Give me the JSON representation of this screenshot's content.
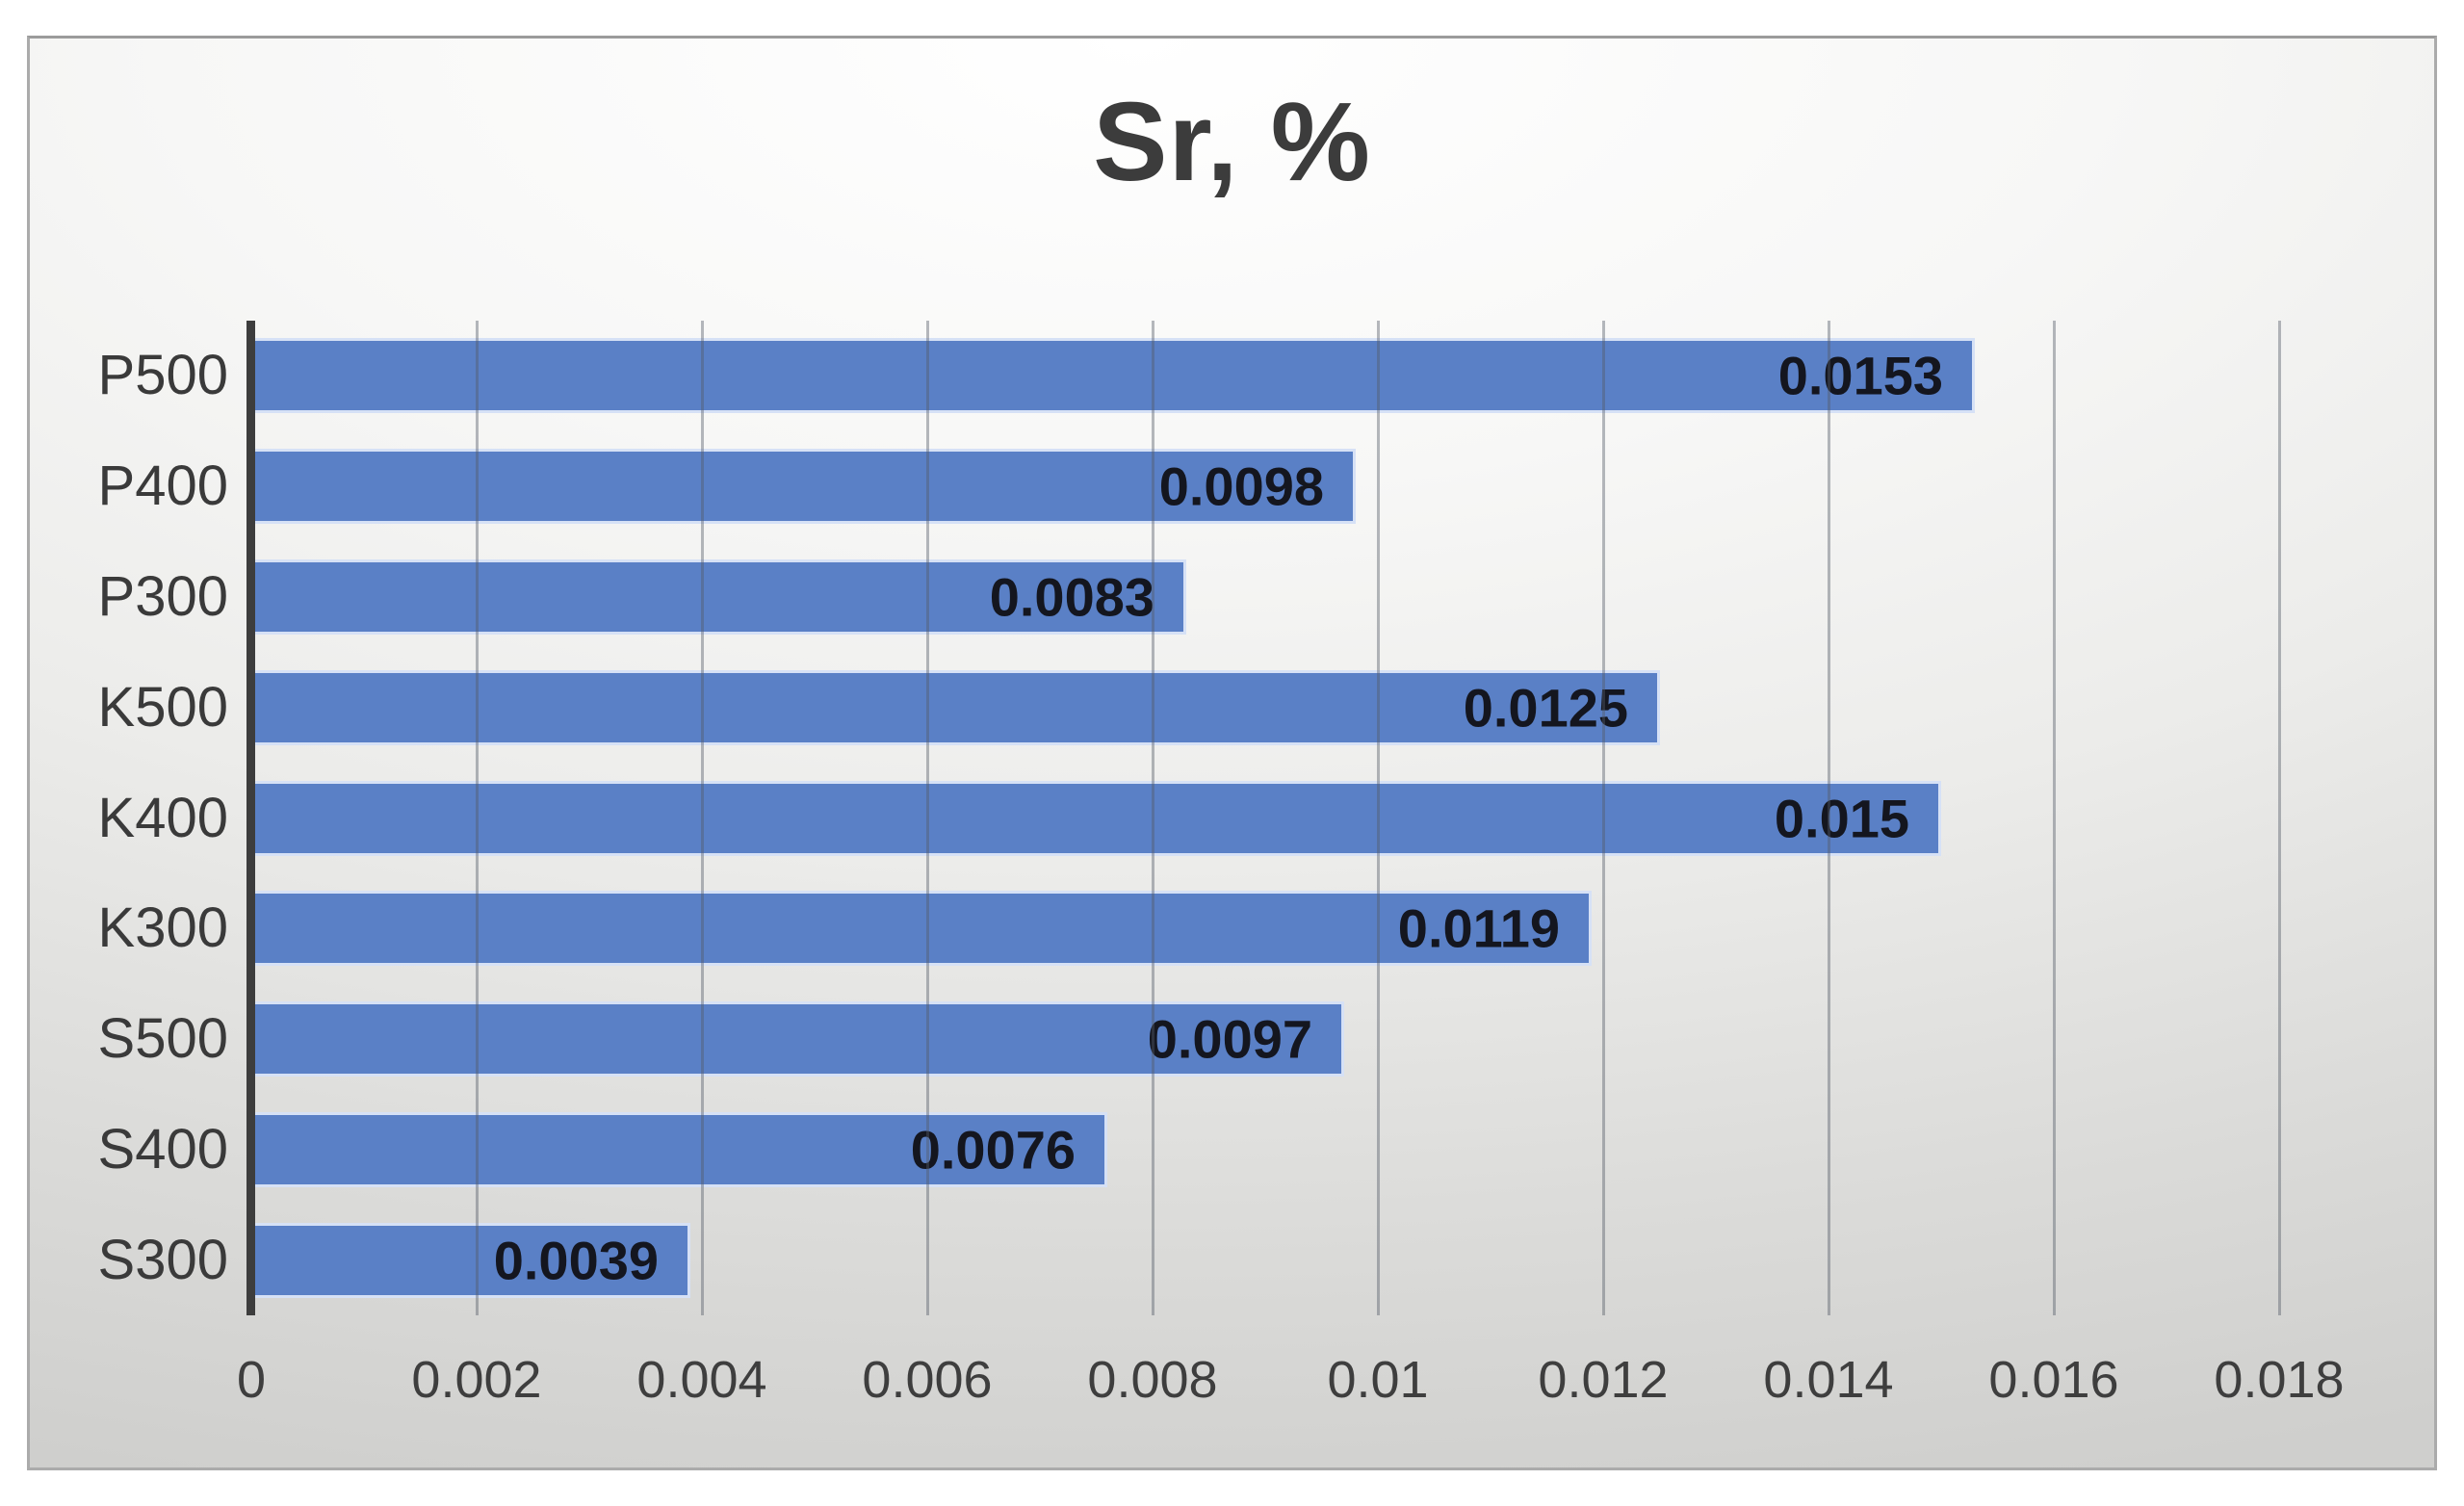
{
  "chart_data": {
    "type": "bar",
    "orientation": "horizontal",
    "title": "Sr, %",
    "categories": [
      "P500",
      "P400",
      "P300",
      "K500",
      "K400",
      "K300",
      "S500",
      "S400",
      "S300"
    ],
    "values": [
      0.0153,
      0.0098,
      0.0083,
      0.0125,
      0.015,
      0.0119,
      0.0097,
      0.0076,
      0.0039
    ],
    "value_labels": [
      "0.0153",
      "0.0098",
      "0.0083",
      "0.0125",
      "0.015",
      "0.0119",
      "0.0097",
      "0.0076",
      "0.0039"
    ],
    "xlim": [
      0,
      0.018
    ],
    "xticks": {
      "values": [
        0,
        0.002,
        0.004,
        0.006,
        0.008,
        0.01,
        0.012,
        0.014,
        0.016,
        0.018
      ],
      "labels": [
        "0",
        "0.002",
        "0.004",
        "0.006",
        "0.008",
        "0.01",
        "0.012",
        "0.014",
        "0.016",
        "0.018"
      ]
    },
    "grid": true,
    "legend": false,
    "data_labels_position": "inside-end",
    "colors": {
      "bar_fill": "#5a80c6",
      "bar_border": "#d6e1f6",
      "axis_line": "#3d3d3d",
      "gridline": "rgba(84,90,102,0.42)",
      "title_text": "#3c3c3c",
      "tick_text": "#3e3e3e",
      "category_text": "#3a3a3a",
      "data_label_text": "#14161f"
    }
  }
}
